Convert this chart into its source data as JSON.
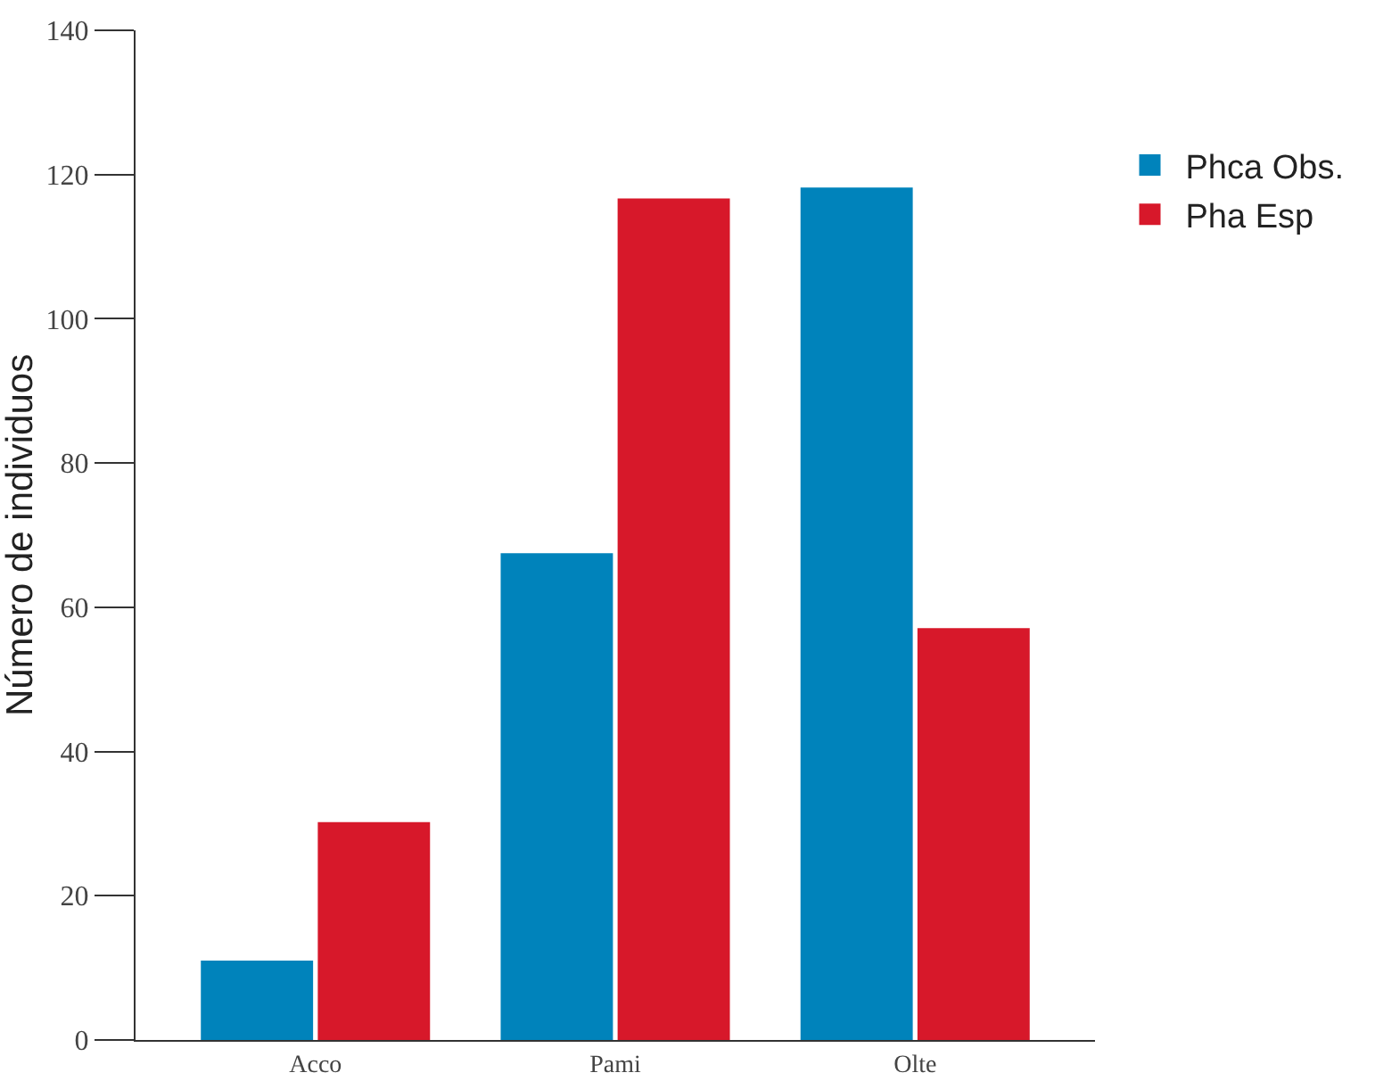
{
  "chart_data": {
    "type": "bar",
    "ylabel": "Número de individuos",
    "categories": [
      "Acco",
      "Pami",
      "Olte"
    ],
    "series": [
      {
        "name": "Phca Obs.",
        "color": "#0083bb",
        "values": [
          11,
          67.5,
          118.2
        ]
      },
      {
        "name": "Pha Esp",
        "color": "#d7182a",
        "values": [
          30.2,
          116.7,
          57.1
        ]
      }
    ],
    "ylim": [
      0,
      140
    ],
    "yticks": [
      0,
      20,
      40,
      60,
      80,
      100,
      120,
      140
    ],
    "grid": false,
    "legend": "top right"
  }
}
